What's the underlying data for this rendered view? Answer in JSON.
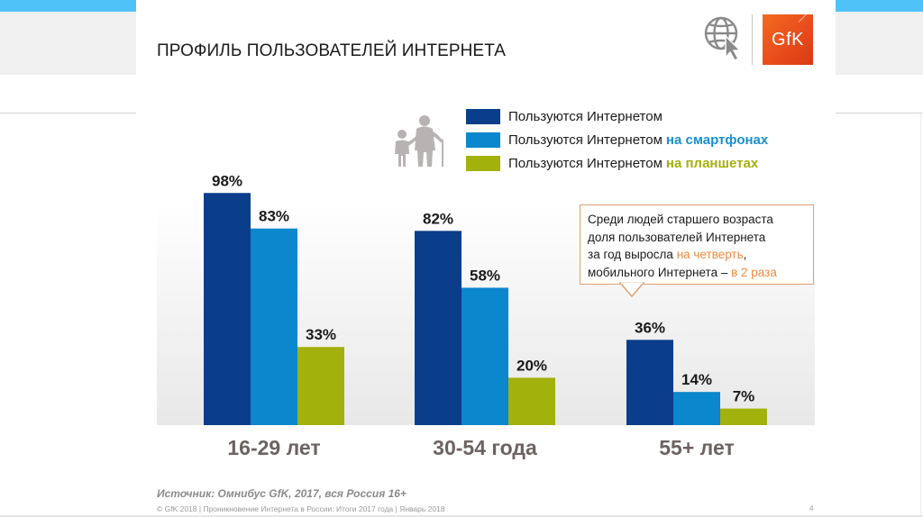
{
  "slide": {
    "title": "ПРОФИЛЬ ПОЛЬЗОВАТЕЛЕЙ ИНТЕРНЕТА",
    "logo_text": "GfK",
    "source": "Источник: Омнибус GfK, 2017, вся Россия 16+",
    "footer": "© GfK 2018 | Проникновение Интернета в России: Итоги 2017 года | Январь 2018",
    "page_number": "4",
    "icons": [
      "globe-cursor-icon",
      "gfk-logo",
      "elderly-with-child-icon"
    ]
  },
  "callout": {
    "line1": "Среди людей старшего возраста",
    "line2": "доля пользователей Интернета",
    "line3_prefix": "за год выросла ",
    "line3_accent": "на четверть",
    "line3_suffix": ",",
    "line4_prefix": "мобильного Интернета – ",
    "line4_accent": "в 2 раза",
    "accent_color": "#f08a3c",
    "border_color": "#e0a070"
  },
  "legend": [
    {
      "label": "Пользуются Интернетом",
      "accent": "",
      "color": "#0a3d8a",
      "accent_color": ""
    },
    {
      "label": "Пользуются Интернетом",
      "accent": "на смартфонах",
      "color": "#0a87cd",
      "accent_color": "#1a8fd0"
    },
    {
      "label": "Пользуются Интернетом",
      "accent": "на планшетах",
      "color": "#a3b10c",
      "accent_color": "#a3b10c"
    }
  ],
  "chart_data": {
    "type": "bar",
    "title": "ПРОФИЛЬ ПОЛЬЗОВАТЕЛЕЙ ИНТЕРНЕТА",
    "categories": [
      "16-29 лет",
      "30-54 года",
      "55+ лет"
    ],
    "series": [
      {
        "name": "Пользуются Интернетом",
        "color": "#0a3d8a",
        "values": [
          98,
          82,
          36
        ]
      },
      {
        "name": "Пользуются Интернетом на смартфонах",
        "color": "#0a87cd",
        "values": [
          83,
          58,
          14
        ]
      },
      {
        "name": "Пользуются Интернетом на планшетах",
        "color": "#a3b10c",
        "values": [
          33,
          20,
          7
        ]
      }
    ],
    "value_suffix": "%",
    "xlabel": "",
    "ylabel": "",
    "ylim": [
      0,
      100
    ],
    "grid": false,
    "legend_position": "top-right",
    "category_label_color": "#6d6262"
  }
}
